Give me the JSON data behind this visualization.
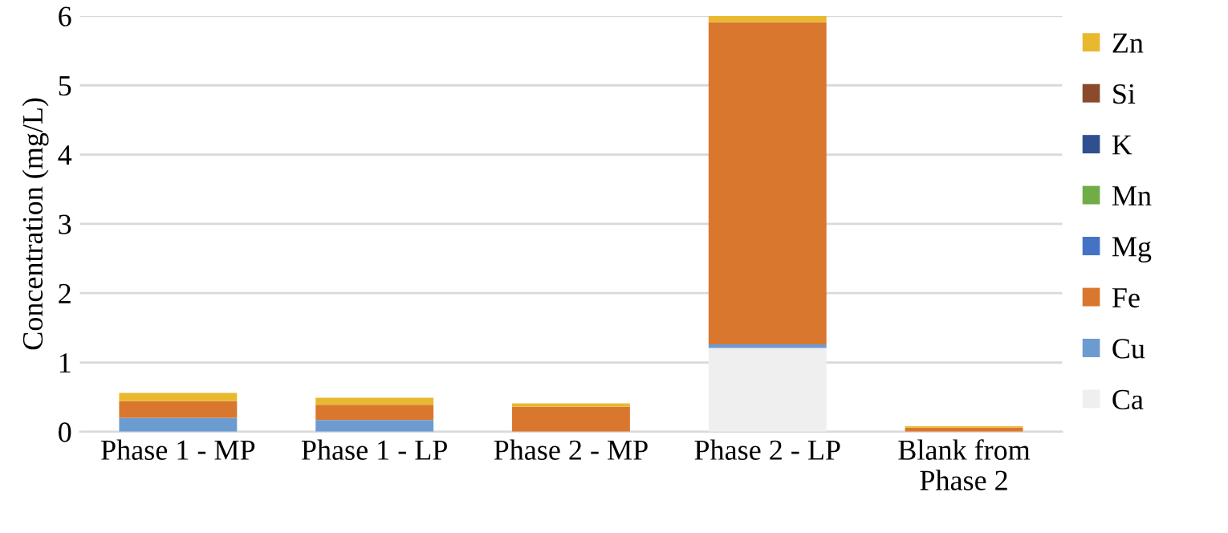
{
  "chart_data": {
    "type": "bar",
    "stacked": true,
    "ylabel": "Concentration (mg/L)",
    "categories": [
      "Phase 1 - MP",
      "Phase 1 - LP",
      "Phase 2 - MP",
      "Phase 2 - LP",
      "Blank from\nPhase 2"
    ],
    "series": [
      {
        "name": "Ca",
        "color": "#efefef",
        "values": [
          0,
          0,
          0,
          1.21,
          0
        ]
      },
      {
        "name": "Cu",
        "color": "#6c9bd2",
        "values": [
          0.2,
          0.17,
          0,
          0.05,
          0
        ]
      },
      {
        "name": "Fe",
        "color": "#d9772f",
        "values": [
          0.24,
          0.22,
          0.36,
          4.65,
          0.06
        ]
      },
      {
        "name": "Mg",
        "color": "#4472c4",
        "values": [
          0,
          0,
          0,
          0,
          0
        ]
      },
      {
        "name": "Mn",
        "color": "#70ad47",
        "values": [
          0,
          0,
          0,
          0,
          0
        ]
      },
      {
        "name": "K",
        "color": "#2f4f8f",
        "values": [
          0,
          0,
          0,
          0,
          0
        ]
      },
      {
        "name": "Si",
        "color": "#8b4a2b",
        "values": [
          0,
          0,
          0,
          0,
          0
        ]
      },
      {
        "name": "Zn",
        "color": "#e8b92e",
        "values": [
          0.12,
          0.1,
          0.05,
          0.09,
          0.02
        ]
      }
    ],
    "ylim": [
      0,
      6
    ],
    "yticks": [
      0,
      1,
      2,
      3,
      4,
      5,
      6
    ],
    "grid": "y",
    "legend": "right"
  }
}
